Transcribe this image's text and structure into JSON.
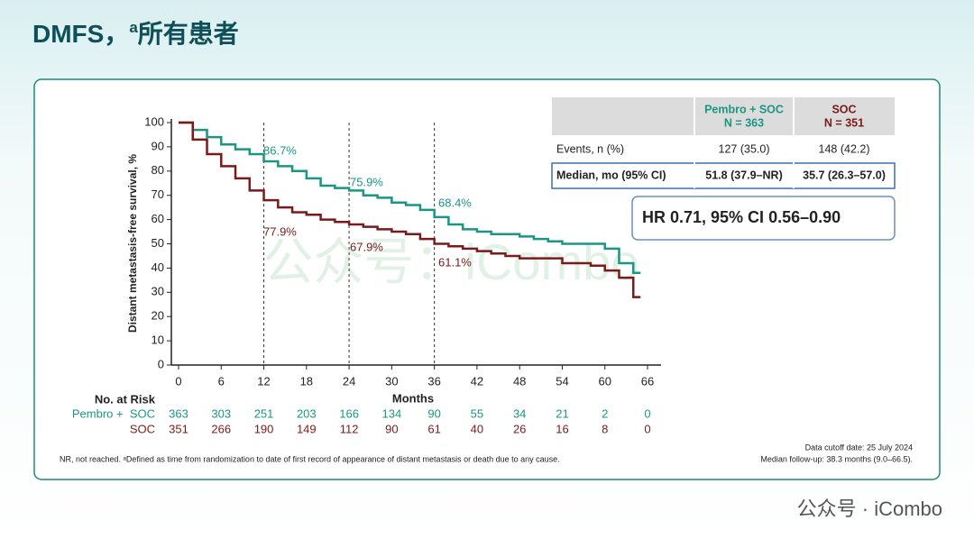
{
  "slide": {
    "title": "DMFS，",
    "title_sup": "a",
    "title_rest": "所有患者",
    "watermark": "公众号 · iCombo",
    "bg_watermark": "公众号：iCombo"
  },
  "chart_data": {
    "type": "km",
    "y_label": "Distant metastasis-free survival, %",
    "x_label": "Months",
    "xlim": [
      0,
      66
    ],
    "ylim": [
      0,
      100
    ],
    "xticks": [
      0,
      6,
      12,
      18,
      24,
      30,
      36,
      42,
      48,
      54,
      60,
      66
    ],
    "yticks": [
      0,
      10,
      20,
      30,
      40,
      50,
      60,
      70,
      80,
      90,
      100
    ],
    "reference_lines": [
      12,
      24,
      36
    ],
    "x": [
      0,
      2,
      4,
      6,
      8,
      10,
      12,
      14,
      16,
      18,
      20,
      22,
      24,
      26,
      28,
      30,
      32,
      34,
      36,
      38,
      40,
      42,
      44,
      46,
      48,
      50,
      52,
      54,
      56,
      58,
      60,
      62,
      64
    ],
    "series": [
      {
        "name": "Pembro + SOC",
        "color": "#1a9683",
        "values": [
          100,
          97,
          94,
          91,
          89,
          87,
          84,
          82,
          80,
          77,
          74,
          73,
          72,
          70,
          69,
          67,
          66,
          64,
          61,
          58,
          56,
          55,
          54,
          54,
          53,
          52,
          51,
          50,
          50,
          50,
          48,
          42,
          38
        ]
      },
      {
        "name": "SOC",
        "color": "#7b1a1a",
        "values": [
          100,
          93,
          87,
          82,
          77,
          72,
          68,
          65,
          63,
          62,
          60,
          59,
          58,
          57,
          56,
          55,
          54,
          52,
          50,
          49,
          48,
          47,
          46,
          45,
          44,
          44,
          44,
          42,
          42,
          41,
          39,
          36,
          28
        ]
      }
    ],
    "annotations": [
      {
        "text": "86.7%",
        "series": 0
      },
      {
        "text": "75.9%",
        "series": 0
      },
      {
        "text": "68.4%",
        "series": 0
      },
      {
        "text": "77.9%",
        "series": 1
      },
      {
        "text": "67.9%",
        "series": 1
      },
      {
        "text": "61.1%",
        "series": 1
      }
    ],
    "risk_table": {
      "title": "No. at Risk",
      "rows": [
        {
          "name": "Pembro +  SOC",
          "values": [
            363,
            303,
            251,
            203,
            166,
            134,
            90,
            55,
            34,
            21,
            2,
            0
          ]
        },
        {
          "name": "SOC",
          "values": [
            351,
            266,
            190,
            149,
            112,
            90,
            61,
            40,
            26,
            16,
            8,
            0
          ]
        }
      ]
    }
  },
  "table": {
    "header": [
      [
        "Pembro + SOC",
        "N = 363"
      ],
      [
        "SOC",
        "N = 351"
      ]
    ],
    "rows": [
      [
        "Events, n (%)",
        "127 (35.0)",
        "148 (42.2)"
      ],
      [
        "Median, mo (95% CI)",
        "51.8 (37.9–NR)",
        "35.7 (26.3–57.0)"
      ]
    ]
  },
  "hr": "HR 0.71, 95% CI 0.56–0.90",
  "footnote": "NR, not reached. ᵃDefined as time from randomization to date of first record of appearance of distant metastasis or death due to any cause.",
  "cutoff": "Data cutoff date: 25 July 2024",
  "followup": "Median follow-up: 38.3 months (9.0–66.5)."
}
